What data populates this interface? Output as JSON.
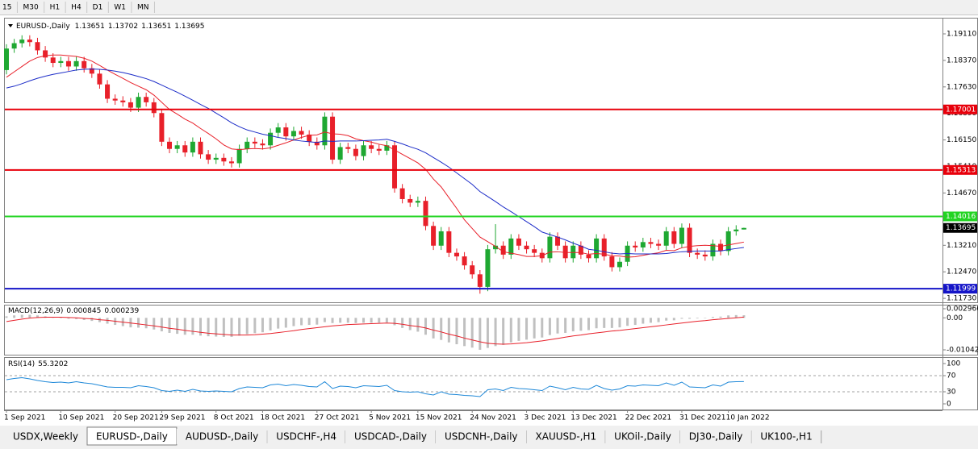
{
  "toolbar": {
    "timeframes": [
      "15",
      "M30",
      "H1",
      "H4",
      "D1",
      "W1",
      "MN"
    ]
  },
  "chart_data": [
    {
      "type": "candlestick",
      "title": "EURUSD-,Daily",
      "categories": [
        "1 Sep 2021",
        null,
        null,
        null,
        null,
        null,
        null,
        "10 Sep 2021",
        null,
        null,
        null,
        null,
        null,
        null,
        "20 Sep 2021",
        null,
        null,
        null,
        null,
        null,
        "29 Sep 2021",
        null,
        null,
        null,
        null,
        null,
        null,
        "8 Oct 2021",
        null,
        null,
        null,
        null,
        null,
        "18 Oct 2021",
        null,
        null,
        null,
        null,
        null,
        null,
        "27 Oct 2021",
        null,
        null,
        null,
        null,
        null,
        null,
        "5 Nov 2021",
        null,
        null,
        null,
        null,
        null,
        "15 Nov 2021",
        null,
        null,
        null,
        null,
        null,
        null,
        "24 Nov 2021",
        null,
        null,
        null,
        null,
        null,
        null,
        "3 Dec 2021",
        null,
        null,
        null,
        null,
        null,
        "13 Dec 2021",
        null,
        null,
        null,
        null,
        null,
        null,
        "22 Dec 2021",
        null,
        null,
        null,
        null,
        null,
        null,
        "31 Dec 2021",
        null,
        null,
        null,
        null,
        null,
        "10 Jan 2022",
        null,
        null
      ],
      "open": [
        1.181,
        1.187,
        1.1885,
        1.1895,
        1.1888,
        1.1865,
        1.1845,
        1.183,
        1.1835,
        1.182,
        1.1835,
        1.1815,
        1.18,
        1.177,
        1.173,
        1.1725,
        1.172,
        1.1705,
        1.1735,
        1.172,
        1.169,
        1.161,
        1.159,
        1.16,
        1.158,
        1.161,
        1.1575,
        1.156,
        1.1565,
        1.1555,
        1.155,
        1.159,
        1.161,
        1.1605,
        1.16,
        1.1635,
        1.165,
        1.1625,
        1.164,
        1.163,
        1.161,
        1.16,
        1.168,
        1.156,
        1.1595,
        1.159,
        1.157,
        1.16,
        1.159,
        1.1585,
        1.16,
        1.148,
        1.145,
        1.144,
        1.1445,
        1.1375,
        1.132,
        1.136,
        1.13,
        1.129,
        1.1265,
        1.124,
        1.1205,
        1.131,
        1.132,
        1.1295,
        1.134,
        1.132,
        1.131,
        1.13,
        1.1285,
        1.1345,
        1.132,
        1.1285,
        1.132,
        1.1295,
        1.1285,
        1.134,
        1.129,
        1.126,
        1.1275,
        1.132,
        1.1315,
        1.133,
        1.1325,
        1.132,
        1.136,
        1.1325,
        1.137,
        1.13,
        1.1295,
        1.129,
        1.1325,
        1.1305,
        1.136,
        1.13651
      ],
      "high": [
        1.1882,
        1.1897,
        1.1907,
        1.1907,
        1.19,
        1.1877,
        1.1857,
        1.1847,
        1.1847,
        1.1847,
        1.1847,
        1.1827,
        1.1812,
        1.1782,
        1.1742,
        1.1737,
        1.1732,
        1.1747,
        1.1747,
        1.1732,
        1.1702,
        1.1622,
        1.1612,
        1.1612,
        1.1622,
        1.1622,
        1.1587,
        1.1577,
        1.1577,
        1.1567,
        1.1602,
        1.1622,
        1.1622,
        1.1617,
        1.1647,
        1.1662,
        1.1662,
        1.1652,
        1.1652,
        1.1642,
        1.1622,
        1.1692,
        1.1692,
        1.1607,
        1.1607,
        1.1602,
        1.1612,
        1.1612,
        1.1602,
        1.1612,
        1.1612,
        1.1492,
        1.1462,
        1.1457,
        1.1457,
        1.1387,
        1.1372,
        1.1372,
        1.1312,
        1.1302,
        1.1277,
        1.1252,
        1.1322,
        1.138,
        1.1332,
        1.1352,
        1.1352,
        1.1332,
        1.1322,
        1.1312,
        1.1357,
        1.1357,
        1.1332,
        1.1332,
        1.1332,
        1.1307,
        1.1352,
        1.1352,
        1.1302,
        1.1287,
        1.1332,
        1.1332,
        1.1342,
        1.1342,
        1.1337,
        1.1372,
        1.1372,
        1.1382,
        1.1382,
        1.1312,
        1.1307,
        1.1337,
        1.1337,
        1.1372,
        1.1377,
        1.13702
      ],
      "low": [
        1.1798,
        1.1858,
        1.1873,
        1.1876,
        1.1853,
        1.1833,
        1.1818,
        1.1818,
        1.1808,
        1.1808,
        1.1803,
        1.1788,
        1.1758,
        1.1718,
        1.1713,
        1.1708,
        1.1693,
        1.1693,
        1.1708,
        1.1678,
        1.1598,
        1.1578,
        1.1578,
        1.1568,
        1.1568,
        1.1563,
        1.1548,
        1.1548,
        1.1543,
        1.1538,
        1.1538,
        1.1578,
        1.1593,
        1.1588,
        1.1588,
        1.1623,
        1.1613,
        1.1613,
        1.1618,
        1.1598,
        1.1588,
        1.1588,
        1.1548,
        1.1548,
        1.1578,
        1.1558,
        1.1558,
        1.1578,
        1.1573,
        1.1573,
        1.1468,
        1.1438,
        1.1428,
        1.1428,
        1.1363,
        1.1308,
        1.1308,
        1.1288,
        1.1278,
        1.1253,
        1.1228,
        1.1186,
        1.1193,
        1.1298,
        1.1283,
        1.1283,
        1.1308,
        1.1298,
        1.1288,
        1.1273,
        1.1273,
        1.1308,
        1.1273,
        1.1273,
        1.1283,
        1.1273,
        1.1273,
        1.1278,
        1.1248,
        1.1248,
        1.1263,
        1.1303,
        1.1303,
        1.1313,
        1.1308,
        1.1308,
        1.1313,
        1.1313,
        1.1288,
        1.1283,
        1.1278,
        1.1278,
        1.1293,
        1.1293,
        1.1348,
        1.13651
      ],
      "close": [
        1.187,
        1.1885,
        1.1895,
        1.1888,
        1.1865,
        1.1845,
        1.183,
        1.1835,
        1.182,
        1.1835,
        1.1815,
        1.18,
        1.177,
        1.173,
        1.1725,
        1.172,
        1.1705,
        1.1735,
        1.172,
        1.169,
        1.161,
        1.159,
        1.16,
        1.158,
        1.161,
        1.1575,
        1.156,
        1.1565,
        1.1555,
        1.155,
        1.159,
        1.161,
        1.1605,
        1.16,
        1.1635,
        1.165,
        1.1625,
        1.164,
        1.163,
        1.161,
        1.16,
        1.168,
        1.156,
        1.1595,
        1.159,
        1.157,
        1.16,
        1.159,
        1.1585,
        1.16,
        1.148,
        1.145,
        1.144,
        1.1445,
        1.1375,
        1.132,
        1.136,
        1.13,
        1.129,
        1.1265,
        1.124,
        1.1205,
        1.131,
        1.132,
        1.1295,
        1.134,
        1.132,
        1.131,
        1.13,
        1.1285,
        1.1345,
        1.132,
        1.1285,
        1.132,
        1.1295,
        1.1285,
        1.134,
        1.129,
        1.126,
        1.1275,
        1.132,
        1.1315,
        1.133,
        1.1325,
        1.132,
        1.136,
        1.1325,
        1.137,
        1.13,
        1.1295,
        1.129,
        1.1325,
        1.1305,
        1.136,
        1.13651,
        1.13695
      ],
      "up_color": "#1fa832",
      "down_color": "#e8202a",
      "series": [
        {
          "color": "#e8202a",
          "values": [
            1.179,
            1.1805,
            1.182,
            1.1835,
            1.1845,
            1.185,
            1.1852,
            1.1852,
            1.185,
            1.1848,
            1.1843,
            1.1835,
            1.1823,
            1.181,
            1.1798,
            1.1787,
            1.1775,
            1.1765,
            1.1755,
            1.174,
            1.172,
            1.17,
            1.1687,
            1.1673,
            1.1662,
            1.1647,
            1.1633,
            1.1618,
            1.1601,
            1.159,
            1.1588,
            1.159,
            1.1591,
            1.159,
            1.1593,
            1.16,
            1.1607,
            1.1615,
            1.1622,
            1.1628,
            1.1629,
            1.1637,
            1.1632,
            1.1631,
            1.1627,
            1.1618,
            1.1613,
            1.1609,
            1.1603,
            1.1599,
            1.1587,
            1.1575,
            1.1563,
            1.1551,
            1.1533,
            1.1506,
            1.1484,
            1.1454,
            1.1424,
            1.1392,
            1.1368,
            1.1344,
            1.1331,
            1.1318,
            1.1303,
            1.1299,
            1.1295,
            1.129,
            1.129,
            1.1292,
            1.1302,
            1.1303,
            1.1301,
            1.1301,
            1.1301,
            1.1296,
            1.1298,
            1.1296,
            1.1292,
            1.1291,
            1.1288,
            1.1289,
            1.1293,
            1.1297,
            1.13,
            1.1307,
            1.1306,
            1.1314,
            1.1318,
            1.132,
            1.1321,
            1.132,
            1.1318,
            1.1322,
            1.1326,
            1.133
          ]
        },
        {
          "color": "#1c2cc8",
          "values": [
            1.176,
            1.1765,
            1.1772,
            1.178,
            1.1787,
            1.1793,
            1.1798,
            1.1802,
            1.1806,
            1.181,
            1.1812,
            1.1813,
            1.1812,
            1.181,
            1.1807,
            1.1803,
            1.1798,
            1.1792,
            1.1786,
            1.1778,
            1.1768,
            1.1758,
            1.1748,
            1.1737,
            1.1726,
            1.1714,
            1.1703,
            1.169,
            1.1677,
            1.1663,
            1.1652,
            1.1643,
            1.1637,
            1.1631,
            1.1627,
            1.1622,
            1.1619,
            1.1615,
            1.1612,
            1.161,
            1.1608,
            1.1612,
            1.1611,
            1.1612,
            1.1612,
            1.1612,
            1.1613,
            1.1614,
            1.1615,
            1.1617,
            1.1611,
            1.1604,
            1.1596,
            1.1589,
            1.1579,
            1.1566,
            1.1553,
            1.1539,
            1.1523,
            1.1507,
            1.1491,
            1.1471,
            1.1457,
            1.1443,
            1.1428,
            1.1415,
            1.1401,
            1.1387,
            1.1373,
            1.1358,
            1.1351,
            1.1344,
            1.1336,
            1.1327,
            1.1319,
            1.131,
            1.1307,
            1.1303,
            1.1299,
            1.1297,
            1.1298,
            1.1297,
            1.1297,
            1.1297,
            1.1297,
            1.1298,
            1.1301,
            1.1303,
            1.1304,
            1.1305,
            1.1305,
            1.1305,
            1.1305,
            1.1309,
            1.1312,
            1.1315
          ]
        }
      ],
      "levels": [
        {
          "value": 1.17001,
          "color": "#e8000b"
        },
        {
          "value": 1.15313,
          "color": "#e8000b"
        },
        {
          "value": 1.14016,
          "color": "#22d422"
        },
        {
          "value": 1.11999,
          "color": "#1414c8"
        }
      ],
      "ylim": [
        1.1162,
        1.1956
      ],
      "yticks": [
        {
          "value": 1.1911,
          "label": "1.19110"
        },
        {
          "value": 1.1837,
          "label": "1.18370"
        },
        {
          "value": 1.1763,
          "label": "1.17630"
        },
        {
          "value": 1.1689,
          "label": "1.16890"
        },
        {
          "value": 1.1615,
          "label": "1.16150"
        },
        {
          "value": 1.1541,
          "label": "1.15410"
        },
        {
          "value": 1.1467,
          "label": "1.14670"
        },
        {
          "value": 1.1321,
          "label": "1.13210"
        },
        {
          "value": 1.1247,
          "label": "1.12470"
        },
        {
          "value": 1.1173,
          "label": "1.11730"
        }
      ]
    },
    {
      "type": "macd",
      "title": "MACD(12,26,9)",
      "series": [
        {
          "type": "bar",
          "color": "#c0c0c0",
          "values": [
            0.0005,
            0.0008,
            0.001,
            0.001,
            0.0008,
            0.0005,
            0.0002,
            0.0,
            -0.0003,
            -0.0004,
            -0.0007,
            -0.001,
            -0.0014,
            -0.0019,
            -0.0023,
            -0.0027,
            -0.0031,
            -0.0032,
            -0.0034,
            -0.0038,
            -0.0044,
            -0.0049,
            -0.0052,
            -0.0055,
            -0.0055,
            -0.0058,
            -0.006,
            -0.0061,
            -0.0062,
            -0.0062,
            -0.0058,
            -0.0053,
            -0.005,
            -0.0047,
            -0.0041,
            -0.0035,
            -0.0032,
            -0.0027,
            -0.0024,
            -0.0023,
            -0.0022,
            -0.0014,
            -0.0017,
            -0.0016,
            -0.0016,
            -0.0017,
            -0.0016,
            -0.0016,
            -0.0016,
            -0.0015,
            -0.0024,
            -0.0033,
            -0.004,
            -0.0045,
            -0.0055,
            -0.0067,
            -0.0072,
            -0.008,
            -0.0086,
            -0.0092,
            -0.0097,
            -0.0104,
            -0.0098,
            -0.0092,
            -0.0088,
            -0.008,
            -0.0075,
            -0.0071,
            -0.0067,
            -0.0064,
            -0.0056,
            -0.0051,
            -0.0049,
            -0.0044,
            -0.0042,
            -0.004,
            -0.0034,
            -0.0033,
            -0.0033,
            -0.0031,
            -0.0026,
            -0.0023,
            -0.0019,
            -0.0016,
            -0.0014,
            -0.0009,
            -0.0008,
            -0.0003,
            -0.0003,
            -0.0002,
            -0.0001,
            0.0003,
            0.0004,
            0.0008,
            0.0009,
            0.000845
          ]
        },
        {
          "type": "line",
          "color": "#e8202a",
          "values": [
            -0.0012,
            -0.0008,
            -0.0004,
            -0.0001,
            0.0001,
            0.0002,
            0.0002,
            0.0002,
            0.0001,
            0.0,
            -0.0002,
            -0.0003,
            -0.0006,
            -0.0008,
            -0.0011,
            -0.0014,
            -0.0017,
            -0.002,
            -0.0023,
            -0.0026,
            -0.003,
            -0.0034,
            -0.0037,
            -0.0041,
            -0.0044,
            -0.0047,
            -0.005,
            -0.0052,
            -0.0054,
            -0.0056,
            -0.0056,
            -0.0056,
            -0.0055,
            -0.0053,
            -0.0051,
            -0.0048,
            -0.0045,
            -0.0042,
            -0.0038,
            -0.0035,
            -0.0032,
            -0.0029,
            -0.0026,
            -0.0024,
            -0.0022,
            -0.0021,
            -0.002,
            -0.0019,
            -0.0018,
            -0.0017,
            -0.0018,
            -0.0021,
            -0.0025,
            -0.0028,
            -0.0033,
            -0.004,
            -0.0046,
            -0.0053,
            -0.0059,
            -0.0066,
            -0.0072,
            -0.0078,
            -0.0083,
            -0.0085,
            -0.0086,
            -0.0085,
            -0.0083,
            -0.0081,
            -0.0078,
            -0.0075,
            -0.0071,
            -0.0067,
            -0.0063,
            -0.0059,
            -0.0056,
            -0.0052,
            -0.0049,
            -0.0046,
            -0.0043,
            -0.0041,
            -0.0038,
            -0.0035,
            -0.0032,
            -0.0029,
            -0.0026,
            -0.0023,
            -0.002,
            -0.0017,
            -0.0014,
            -0.0011,
            -0.0009,
            -0.0006,
            -0.0004,
            -0.0002,
            0.0,
            0.000239
          ]
        }
      ],
      "ylim": [
        -0.010422,
        0.002966
      ],
      "yticks": [
        0.002966,
        {
          "value": 0,
          "label": "0.00"
        },
        -0.010422
      ]
    },
    {
      "type": "line",
      "title": "RSI(14)",
      "series": [
        {
          "color": "#1e88d8",
          "values": [
            60,
            63,
            65,
            62,
            58,
            55,
            53,
            54,
            52,
            55,
            52,
            50,
            46,
            42,
            41,
            41,
            40,
            45,
            43,
            40,
            33,
            31,
            34,
            31,
            36,
            32,
            31,
            32,
            31,
            30,
            38,
            42,
            41,
            40,
            47,
            49,
            45,
            48,
            46,
            43,
            42,
            55,
            38,
            44,
            43,
            40,
            45,
            44,
            43,
            46,
            33,
            30,
            29,
            30,
            25,
            22,
            30,
            24,
            23,
            21,
            20,
            18,
            35,
            37,
            33,
            41,
            38,
            37,
            35,
            33,
            44,
            40,
            35,
            41,
            37,
            36,
            46,
            38,
            34,
            37,
            45,
            44,
            47,
            46,
            45,
            52,
            46,
            54,
            42,
            41,
            40,
            47,
            44,
            54,
            55,
            55.3202
          ]
        }
      ],
      "levels": [
        70,
        30
      ],
      "ylim": [
        0,
        100
      ],
      "yticks": [
        100,
        70,
        30,
        0
      ]
    }
  ],
  "tabs": {
    "items": [
      "USDX,Weekly",
      "EURUSD-,Daily",
      "AUDUSD-,Daily",
      "USDCHF-,H4",
      "USDCAD-,Daily",
      "USDCNH-,Daily",
      "XAUUSD-,H1",
      "UKOil-,Daily",
      "DJ30-,Daily",
      "UK100-,H1"
    ],
    "active": 1
  }
}
